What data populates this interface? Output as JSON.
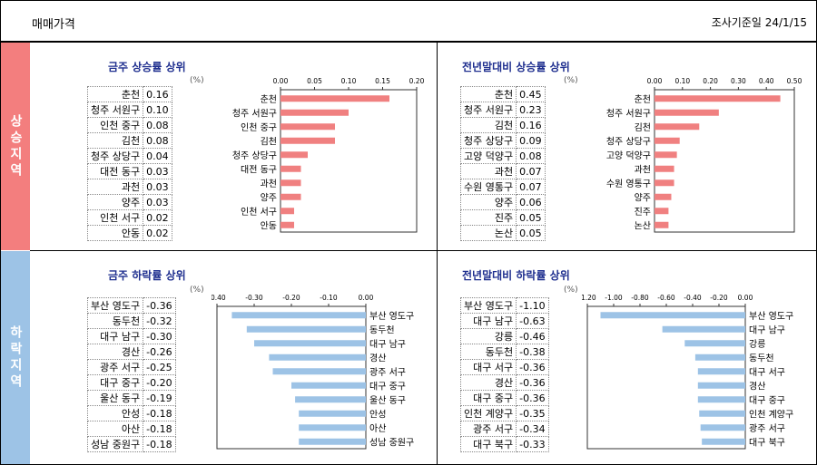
{
  "header": {
    "title": "매매가격",
    "survey_date": "조사기준일   24/1/15"
  },
  "sections": {
    "up_label": "상승지역",
    "down_label": "하락지역"
  },
  "colors": {
    "rise": "#f08080",
    "fall": "#9dc3e6",
    "title": "#1f2f8f"
  },
  "unit": "(%)",
  "panels": [
    {
      "title": "금주 상승률 상위",
      "rows": [
        {
          "name": "춘천",
          "value": "0.16"
        },
        {
          "name": "청주 서원구",
          "value": "0.10"
        },
        {
          "name": "인천 중구",
          "value": "0.08"
        },
        {
          "name": "김천",
          "value": "0.08"
        },
        {
          "name": "청주 상당구",
          "value": "0.04"
        },
        {
          "name": "대전 동구",
          "value": "0.03"
        },
        {
          "name": "과천",
          "value": "0.03"
        },
        {
          "name": "양주",
          "value": "0.03"
        },
        {
          "name": "인천 서구",
          "value": "0.02"
        },
        {
          "name": "안동",
          "value": "0.02"
        }
      ]
    },
    {
      "title": "전년말대비 상승률 상위",
      "rows": [
        {
          "name": "춘천",
          "value": "0.45"
        },
        {
          "name": "청주 서원구",
          "value": "0.23"
        },
        {
          "name": "김천",
          "value": "0.16"
        },
        {
          "name": "청주 상당구",
          "value": "0.09"
        },
        {
          "name": "고양 덕양구",
          "value": "0.08"
        },
        {
          "name": "과천",
          "value": "0.07"
        },
        {
          "name": "수원 영통구",
          "value": "0.07"
        },
        {
          "name": "양주",
          "value": "0.06"
        },
        {
          "name": "진주",
          "value": "0.05"
        },
        {
          "name": "논산",
          "value": "0.05"
        }
      ]
    },
    {
      "title": "금주 하락률 상위",
      "rows": [
        {
          "name": "부산 영도구",
          "value": "-0.36"
        },
        {
          "name": "동두천",
          "value": "-0.32"
        },
        {
          "name": "대구 남구",
          "value": "-0.30"
        },
        {
          "name": "경산",
          "value": "-0.26"
        },
        {
          "name": "광주 서구",
          "value": "-0.25"
        },
        {
          "name": "대구 중구",
          "value": "-0.20"
        },
        {
          "name": "울산 동구",
          "value": "-0.19"
        },
        {
          "name": "안성",
          "value": "-0.18"
        },
        {
          "name": "아산",
          "value": "-0.18"
        },
        {
          "name": "성남 중원구",
          "value": "-0.18"
        }
      ]
    },
    {
      "title": "전년말대비 하락률 상위",
      "rows": [
        {
          "name": "부산 영도구",
          "value": "-1.10"
        },
        {
          "name": "대구 남구",
          "value": "-0.63"
        },
        {
          "name": "강릉",
          "value": "-0.46"
        },
        {
          "name": "동두천",
          "value": "-0.38"
        },
        {
          "name": "대구 서구",
          "value": "-0.36"
        },
        {
          "name": "경산",
          "value": "-0.36"
        },
        {
          "name": "대구 중구",
          "value": "-0.36"
        },
        {
          "name": "인천 계양구",
          "value": "-0.35"
        },
        {
          "name": "광주 서구",
          "value": "-0.34"
        },
        {
          "name": "대구 북구",
          "value": "-0.33"
        }
      ]
    }
  ],
  "chart_data": [
    {
      "type": "bar",
      "orientation": "horizontal",
      "title": "금주 상승률 상위",
      "categories": [
        "춘천",
        "청주 서원구",
        "인천 중구",
        "김천",
        "청주 상당구",
        "대전 동구",
        "과천",
        "양주",
        "인천 서구",
        "안동"
      ],
      "values": [
        0.16,
        0.1,
        0.08,
        0.08,
        0.04,
        0.03,
        0.03,
        0.03,
        0.02,
        0.02
      ],
      "xlim": [
        0,
        0.2
      ],
      "ticks": [
        "0.00",
        "0.05",
        "0.10",
        "0.15",
        "0.20"
      ],
      "grid": false
    },
    {
      "type": "bar",
      "orientation": "horizontal",
      "title": "전년말대비 상승률 상위",
      "categories": [
        "춘천",
        "청주 서원구",
        "김천",
        "청주 상당구",
        "고양 덕양구",
        "과천",
        "수원 영통구",
        "양주",
        "진주",
        "논산"
      ],
      "values": [
        0.45,
        0.23,
        0.16,
        0.09,
        0.08,
        0.07,
        0.07,
        0.06,
        0.05,
        0.05
      ],
      "xlim": [
        0,
        0.5
      ],
      "ticks": [
        "0.00",
        "0.10",
        "0.20",
        "0.30",
        "0.40",
        "0.50"
      ],
      "grid": false
    },
    {
      "type": "bar",
      "orientation": "horizontal",
      "title": "금주 하락률 상위",
      "categories": [
        "부산 영도구",
        "동두천",
        "대구 남구",
        "경산",
        "광주 서구",
        "대구 중구",
        "울산 동구",
        "안성",
        "아산",
        "성남 중원구"
      ],
      "values": [
        -0.36,
        -0.32,
        -0.3,
        -0.26,
        -0.25,
        -0.2,
        -0.19,
        -0.18,
        -0.18,
        -0.18
      ],
      "xlim": [
        -0.4,
        0
      ],
      "ticks": [
        "-0.40",
        "-0.30",
        "-0.20",
        "-0.10",
        "0.00"
      ],
      "grid": false
    },
    {
      "type": "bar",
      "orientation": "horizontal",
      "title": "전년말대비 하락률 상위",
      "categories": [
        "부산 영도구",
        "대구 남구",
        "강릉",
        "동두천",
        "대구 서구",
        "경산",
        "대구 중구",
        "인천 계양구",
        "광주 서구",
        "대구 북구"
      ],
      "values": [
        -1.1,
        -0.63,
        -0.46,
        -0.38,
        -0.36,
        -0.36,
        -0.36,
        -0.35,
        -0.34,
        -0.33
      ],
      "xlim": [
        -1.2,
        0
      ],
      "ticks": [
        "-1.20",
        "-1.00",
        "-0.80",
        "-0.60",
        "-0.40",
        "-0.20",
        "0.00"
      ],
      "grid": false
    }
  ]
}
